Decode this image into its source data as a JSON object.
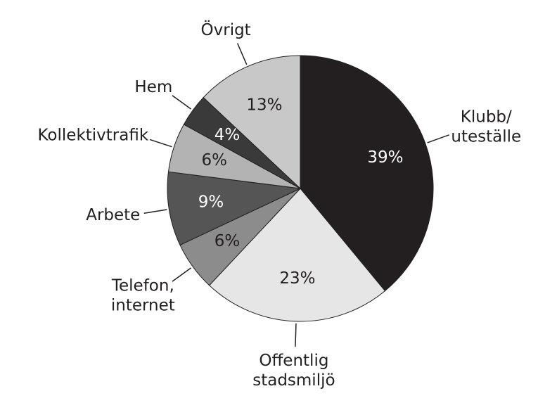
{
  "chart_data": {
    "type": "pie",
    "categories": [
      "Klubb/\nuteställe",
      "Offentlig\nstadsmiljö",
      "Telefon,\ninternet",
      "Arbete",
      "Kollektivtrafik",
      "Hem",
      "Övrigt"
    ],
    "values": [
      39,
      23,
      6,
      9,
      6,
      4,
      13
    ],
    "value_labels": [
      "39%",
      "23%",
      "6%",
      "9%",
      "6%",
      "4%",
      "13%"
    ],
    "colors": [
      "#231f20",
      "#e6e6e6",
      "#8c8c8c",
      "#555555",
      "#b3b3b3",
      "#3a3a3a",
      "#c8c8c8"
    ]
  }
}
